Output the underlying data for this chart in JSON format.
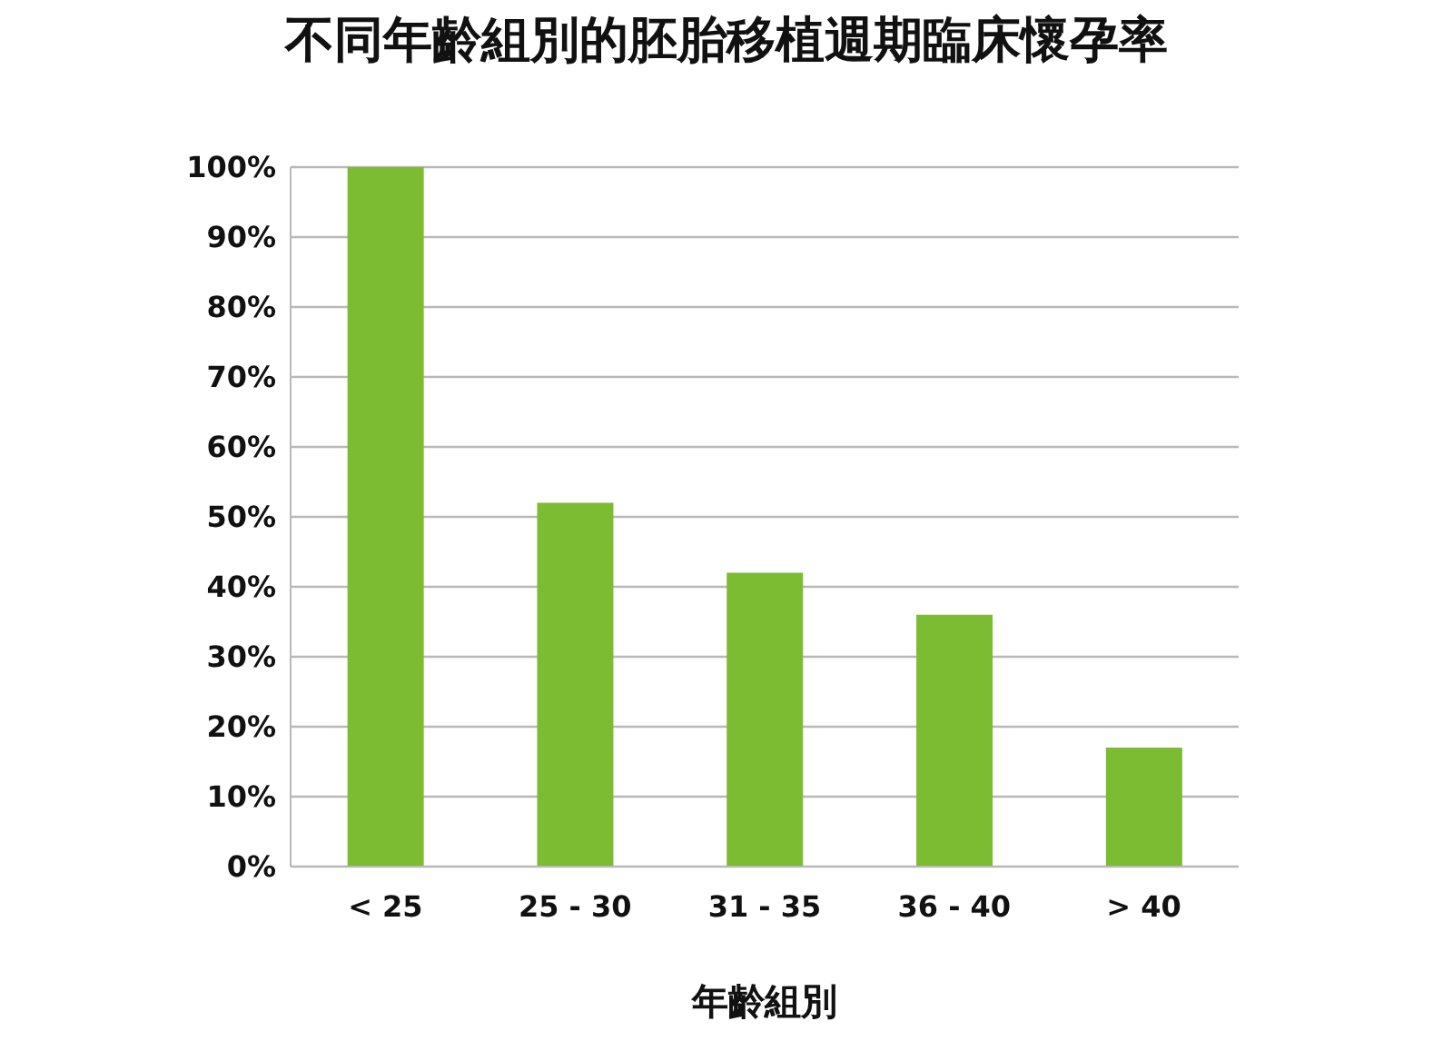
{
  "chart_data": {
    "type": "bar",
    "title": "不同年齡組別的胚胎移植週期臨床懷孕率",
    "xlabel": "年齡組別",
    "categories": [
      "< 25",
      "25 - 30",
      "31 - 35",
      "36 - 40",
      "> 40"
    ],
    "values": [
      100,
      52,
      42,
      36,
      17
    ],
    "color": "#7cbc32",
    "ylim": [
      0,
      100
    ],
    "yticks": [
      {
        "value": 0,
        "label": "0%"
      },
      {
        "value": 10,
        "label": "10%"
      },
      {
        "value": 20,
        "label": "20%"
      },
      {
        "value": 30,
        "label": "30%"
      },
      {
        "value": 40,
        "label": "40%"
      },
      {
        "value": 50,
        "label": "50%"
      },
      {
        "value": 60,
        "label": "60%"
      },
      {
        "value": 70,
        "label": "70%"
      },
      {
        "value": 80,
        "label": "80%"
      },
      {
        "value": 90,
        "label": "90%"
      },
      {
        "value": 100,
        "label": "100%"
      }
    ],
    "grid": "y"
  }
}
